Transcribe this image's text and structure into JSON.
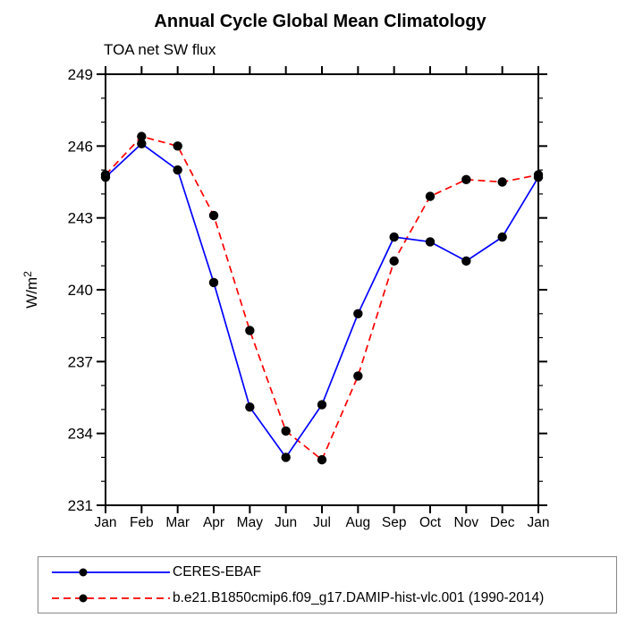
{
  "chart": {
    "title": "Annual Cycle Global Mean Climatology",
    "subtitle": "TOA net SW flux"
  },
  "chart_data": {
    "type": "line",
    "title": "Annual Cycle Global Mean Climatology",
    "subtitle": "TOA net SW flux",
    "xlabel": "",
    "ylabel": "W/m²",
    "categories": [
      "Jan",
      "Feb",
      "Mar",
      "Apr",
      "May",
      "Jun",
      "Jul",
      "Aug",
      "Sep",
      "Oct",
      "Nov",
      "Dec",
      "Jan"
    ],
    "ylim": [
      231,
      249
    ],
    "yticks": [
      231,
      234,
      237,
      240,
      243,
      246,
      249
    ],
    "y_minor_step": 1,
    "grid": false,
    "legend_position": "bottom-left",
    "marker": {
      "shape": "circle",
      "color": "#000000"
    },
    "axis_color": "#000000",
    "series": [
      {
        "name": "CERES-EBAF",
        "color": "#0000ff",
        "line_style": "solid",
        "values": [
          244.7,
          246.1,
          245.0,
          240.3,
          235.1,
          233.0,
          235.2,
          239.0,
          242.2,
          242.0,
          241.2,
          242.2,
          244.7
        ]
      },
      {
        "name": "b.e21.B1850cmip6.f09_g17.DAMIP-hist-vlc.001 (1990-2014)",
        "color": "#ff0000",
        "line_style": "dashed",
        "values": [
          244.8,
          246.4,
          246.0,
          243.1,
          238.3,
          234.1,
          232.9,
          236.4,
          241.2,
          243.9,
          244.6,
          244.5,
          244.8
        ]
      }
    ]
  }
}
